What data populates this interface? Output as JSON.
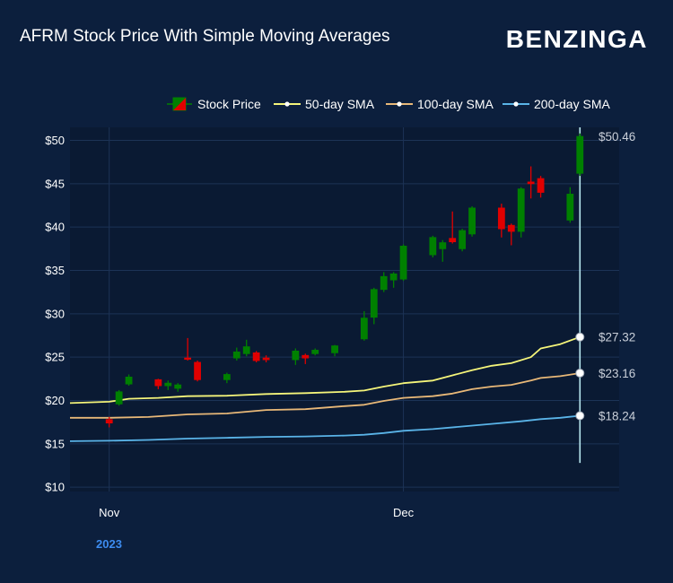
{
  "header": {
    "title": "AFRM Stock Price With Simple Moving Averages",
    "logo_text": "BENZINGA"
  },
  "colors": {
    "background": "#0c1f3d",
    "plot_background": "#0a1a33",
    "up_candle": "#008000",
    "down_candle": "#e00000",
    "sma50": "#f5f57a",
    "sma100": "#e8b878",
    "sma200": "#5ab4e8",
    "year_label": "#3d8cf0",
    "crosshair": "#b8e8f0"
  },
  "chart_data": {
    "type": "candlestick",
    "title": "AFRM Stock Price With Simple Moving Averages",
    "x_ticks": [
      {
        "label": "Nov",
        "day": 0
      },
      {
        "label": "Dec",
        "day": 30
      }
    ],
    "x_range_days": [
      -4,
      52
    ],
    "x_year_label": "2023",
    "y_range": [
      9.5,
      51.5
    ],
    "y_ticks": [
      10,
      15,
      20,
      25,
      30,
      35,
      40,
      45,
      50
    ],
    "y_tick_labels": [
      "$10",
      "$15",
      "$20",
      "$25",
      "$30",
      "$35",
      "$40",
      "$45",
      "$50"
    ],
    "grid": true,
    "legend_position": "top-right",
    "legend": [
      "Stock Price",
      "50-day SMA",
      "100-day SMA",
      "200-day SMA"
    ],
    "candles": [
      {
        "day": 0,
        "open": 17.8,
        "high": 18.1,
        "low": 16.9,
        "close": 17.4
      },
      {
        "day": 1,
        "open": 19.6,
        "high": 21.2,
        "low": 19.4,
        "close": 21.0
      },
      {
        "day": 2,
        "open": 21.9,
        "high": 23.0,
        "low": 21.7,
        "close": 22.7
      },
      {
        "day": 5,
        "open": 22.4,
        "high": 22.5,
        "low": 21.3,
        "close": 21.7
      },
      {
        "day": 6,
        "open": 21.7,
        "high": 22.3,
        "low": 21.2,
        "close": 22.0
      },
      {
        "day": 7,
        "open": 21.4,
        "high": 22.0,
        "low": 21.0,
        "close": 21.8
      },
      {
        "day": 8,
        "open": 24.9,
        "high": 27.2,
        "low": 24.6,
        "close": 24.8
      },
      {
        "day": 9,
        "open": 24.4,
        "high": 24.6,
        "low": 22.2,
        "close": 22.4
      },
      {
        "day": 12,
        "open": 22.4,
        "high": 23.2,
        "low": 22.0,
        "close": 23.0
      },
      {
        "day": 13,
        "open": 24.9,
        "high": 26.1,
        "low": 24.6,
        "close": 25.6
      },
      {
        "day": 14,
        "open": 25.4,
        "high": 27.0,
        "low": 25.1,
        "close": 26.2
      },
      {
        "day": 15,
        "open": 25.5,
        "high": 25.7,
        "low": 24.4,
        "close": 24.6
      },
      {
        "day": 16,
        "open": 24.9,
        "high": 25.2,
        "low": 24.4,
        "close": 24.7
      },
      {
        "day": 19,
        "open": 24.7,
        "high": 26.0,
        "low": 24.1,
        "close": 25.7
      },
      {
        "day": 20,
        "open": 25.2,
        "high": 25.4,
        "low": 24.2,
        "close": 24.9
      },
      {
        "day": 21,
        "open": 25.4,
        "high": 26.0,
        "low": 25.2,
        "close": 25.8
      },
      {
        "day": 23,
        "open": 25.5,
        "high": 26.4,
        "low": 25.1,
        "close": 26.3
      },
      {
        "day": 26,
        "open": 27.1,
        "high": 30.3,
        "low": 26.9,
        "close": 29.5
      },
      {
        "day": 27,
        "open": 29.6,
        "high": 33.0,
        "low": 28.8,
        "close": 32.8
      },
      {
        "day": 28,
        "open": 32.8,
        "high": 34.8,
        "low": 32.5,
        "close": 34.3
      },
      {
        "day": 29,
        "open": 33.9,
        "high": 34.8,
        "low": 33.0,
        "close": 34.6
      },
      {
        "day": 30,
        "open": 34.0,
        "high": 38.0,
        "low": 33.8,
        "close": 37.8
      },
      {
        "day": 33,
        "open": 36.8,
        "high": 39.0,
        "low": 36.5,
        "close": 38.8
      },
      {
        "day": 34,
        "open": 37.5,
        "high": 38.5,
        "low": 36.0,
        "close": 38.2
      },
      {
        "day": 35,
        "open": 38.7,
        "high": 41.8,
        "low": 38.1,
        "close": 38.3
      },
      {
        "day": 36,
        "open": 37.5,
        "high": 39.8,
        "low": 37.2,
        "close": 39.6
      },
      {
        "day": 37,
        "open": 39.2,
        "high": 42.4,
        "low": 38.9,
        "close": 42.2
      },
      {
        "day": 40,
        "open": 42.2,
        "high": 42.7,
        "low": 38.8,
        "close": 39.8
      },
      {
        "day": 41,
        "open": 40.2,
        "high": 40.4,
        "low": 37.9,
        "close": 39.5
      },
      {
        "day": 42,
        "open": 39.5,
        "high": 44.6,
        "low": 38.8,
        "close": 44.4
      },
      {
        "day": 43,
        "open": 45.2,
        "high": 47.0,
        "low": 43.3,
        "close": 45.0
      },
      {
        "day": 44,
        "open": 45.6,
        "high": 45.9,
        "low": 43.4,
        "close": 44.0
      },
      {
        "day": 47,
        "open": 40.8,
        "high": 44.6,
        "low": 40.5,
        "close": 43.8
      },
      {
        "day": 48,
        "open": 46.2,
        "high": 50.8,
        "low": 45.9,
        "close": 50.46
      }
    ],
    "series": [
      {
        "name": "50-day SMA",
        "x": [
          -4,
          0,
          2,
          5,
          8,
          12,
          16,
          20,
          24,
          26,
          28,
          30,
          33,
          35,
          37,
          39,
          41,
          43,
          44,
          46,
          48
        ],
        "values": [
          19.7,
          19.85,
          20.2,
          20.3,
          20.5,
          20.55,
          20.75,
          20.85,
          21.0,
          21.15,
          21.6,
          22.0,
          22.3,
          22.9,
          23.5,
          24.0,
          24.3,
          25.0,
          26.0,
          26.5,
          27.32
        ]
      },
      {
        "name": "100-day SMA",
        "x": [
          -4,
          0,
          4,
          8,
          12,
          16,
          20,
          24,
          26,
          28,
          30,
          33,
          35,
          37,
          39,
          41,
          43,
          44,
          46,
          48
        ],
        "values": [
          18.0,
          18.0,
          18.1,
          18.4,
          18.5,
          18.9,
          19.0,
          19.35,
          19.5,
          19.95,
          20.3,
          20.5,
          20.8,
          21.3,
          21.6,
          21.8,
          22.3,
          22.6,
          22.8,
          23.16
        ]
      },
      {
        "name": "200-day SMA",
        "x": [
          -4,
          0,
          4,
          8,
          12,
          16,
          20,
          24,
          26,
          28,
          30,
          33,
          36,
          39,
          42,
          44,
          46,
          48
        ],
        "values": [
          15.3,
          15.35,
          15.45,
          15.6,
          15.7,
          15.8,
          15.85,
          15.95,
          16.05,
          16.25,
          16.5,
          16.7,
          17.0,
          17.3,
          17.6,
          17.85,
          18.0,
          18.24
        ]
      }
    ],
    "end_labels": [
      {
        "series": "Stock Price",
        "value": 50.46,
        "text": "$50.46"
      },
      {
        "series": "50-day SMA",
        "value": 27.32,
        "text": "$27.32"
      },
      {
        "series": "100-day SMA",
        "value": 23.16,
        "text": "$23.16"
      },
      {
        "series": "200-day SMA",
        "value": 18.24,
        "text": "$18.24"
      }
    ],
    "crosshair": {
      "day": 48,
      "from": 12.8,
      "to": 51.5
    }
  }
}
